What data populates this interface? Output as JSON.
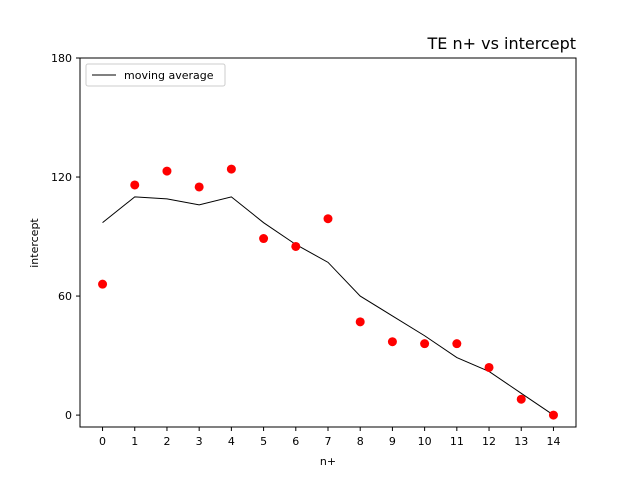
{
  "chart_data": {
    "type": "scatter",
    "title": "TE n+ vs intercept",
    "xlabel": "n+",
    "ylabel": "intercept",
    "xlim": [
      -0.7,
      14.7
    ],
    "ylim": [
      -6,
      180
    ],
    "x_ticks": [
      0,
      1,
      2,
      3,
      4,
      5,
      6,
      7,
      8,
      9,
      10,
      11,
      12,
      13,
      14
    ],
    "y_ticks": [
      0,
      60,
      120,
      180
    ],
    "grid": false,
    "legend": {
      "position": "top-left",
      "entries": [
        "moving average"
      ]
    },
    "series": [
      {
        "kind": "scatter",
        "color": "#ff0000",
        "x": [
          0,
          1,
          2,
          3,
          4,
          5,
          6,
          7,
          8,
          9,
          10,
          11,
          12,
          13,
          14
        ],
        "y": [
          66,
          116,
          123,
          115,
          124,
          89,
          85,
          99,
          47,
          37,
          36,
          36,
          24,
          8,
          0
        ]
      },
      {
        "name": "moving average",
        "kind": "line",
        "color": "#000000",
        "x": [
          0,
          1,
          2,
          3,
          4,
          5,
          6,
          7,
          8,
          9,
          10,
          11,
          12,
          13,
          14
        ],
        "y": [
          97,
          110,
          109,
          106,
          110,
          97,
          86,
          77,
          60,
          50,
          40,
          29,
          22,
          11,
          0
        ]
      }
    ]
  }
}
